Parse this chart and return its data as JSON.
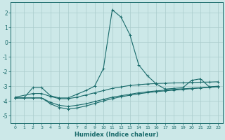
{
  "background_color": "#cce8e8",
  "grid_color": "#aacccc",
  "line_color": "#1a6b6b",
  "xlabel": "Humidex (Indice chaleur)",
  "xlim": [
    -0.5,
    23.5
  ],
  "ylim": [
    -5.5,
    2.7
  ],
  "yticks": [
    -5,
    -4,
    -3,
    -2,
    -1,
    0,
    1,
    2
  ],
  "xticks": [
    0,
    1,
    2,
    3,
    4,
    5,
    6,
    7,
    8,
    9,
    10,
    11,
    12,
    13,
    14,
    15,
    16,
    17,
    18,
    19,
    20,
    21,
    22,
    23
  ],
  "series": [
    {
      "x": [
        0,
        1,
        2,
        3,
        4,
        5,
        6,
        7,
        8,
        9,
        10,
        11,
        12,
        13,
        14,
        15,
        16,
        17,
        18,
        19,
        20,
        21,
        22,
        23
      ],
      "y": [
        -3.8,
        -3.8,
        -3.1,
        -3.1,
        -3.65,
        -3.8,
        -3.8,
        -3.55,
        -3.3,
        -3.0,
        -1.8,
        2.2,
        1.7,
        0.5,
        -1.55,
        -2.3,
        -2.85,
        -3.2,
        -3.15,
        -3.1,
        -2.6,
        -2.5,
        -3.05,
        -3.0
      ],
      "marker": "+"
    },
    {
      "x": [
        0,
        2,
        3,
        4,
        5,
        6,
        7,
        8,
        9,
        10,
        11,
        12,
        13,
        14,
        15,
        16,
        17,
        18,
        19,
        20,
        21,
        22,
        23
      ],
      "y": [
        -3.75,
        -3.5,
        -3.5,
        -3.7,
        -3.85,
        -3.85,
        -3.75,
        -3.6,
        -3.45,
        -3.3,
        -3.15,
        -3.05,
        -2.95,
        -2.9,
        -2.85,
        -2.82,
        -2.8,
        -2.78,
        -2.77,
        -2.75,
        -2.73,
        -2.72,
        -2.7
      ],
      "marker": "+"
    },
    {
      "x": [
        0,
        1,
        2,
        3,
        4,
        5,
        6,
        7,
        8,
        9,
        10,
        11,
        12,
        13,
        14,
        15,
        16,
        17,
        18,
        19,
        20,
        21,
        22,
        23
      ],
      "y": [
        -3.8,
        -3.8,
        -3.8,
        -3.8,
        -4.1,
        -4.3,
        -4.38,
        -4.3,
        -4.2,
        -4.05,
        -3.9,
        -3.75,
        -3.65,
        -3.55,
        -3.45,
        -3.38,
        -3.32,
        -3.27,
        -3.22,
        -3.18,
        -3.14,
        -3.1,
        -3.06,
        -3.02
      ],
      "marker": "+"
    },
    {
      "x": [
        0,
        1,
        2,
        3,
        4,
        5,
        6,
        7,
        8,
        9,
        10,
        11,
        12,
        13,
        14,
        15,
        16,
        17,
        18,
        19,
        20,
        21,
        22,
        23
      ],
      "y": [
        -3.8,
        -3.8,
        -3.8,
        -3.8,
        -4.2,
        -4.45,
        -4.55,
        -4.48,
        -4.35,
        -4.18,
        -4.0,
        -3.85,
        -3.72,
        -3.62,
        -3.52,
        -3.44,
        -3.37,
        -3.32,
        -3.27,
        -3.22,
        -3.17,
        -3.13,
        -3.08,
        -3.03
      ],
      "marker": "+"
    }
  ]
}
